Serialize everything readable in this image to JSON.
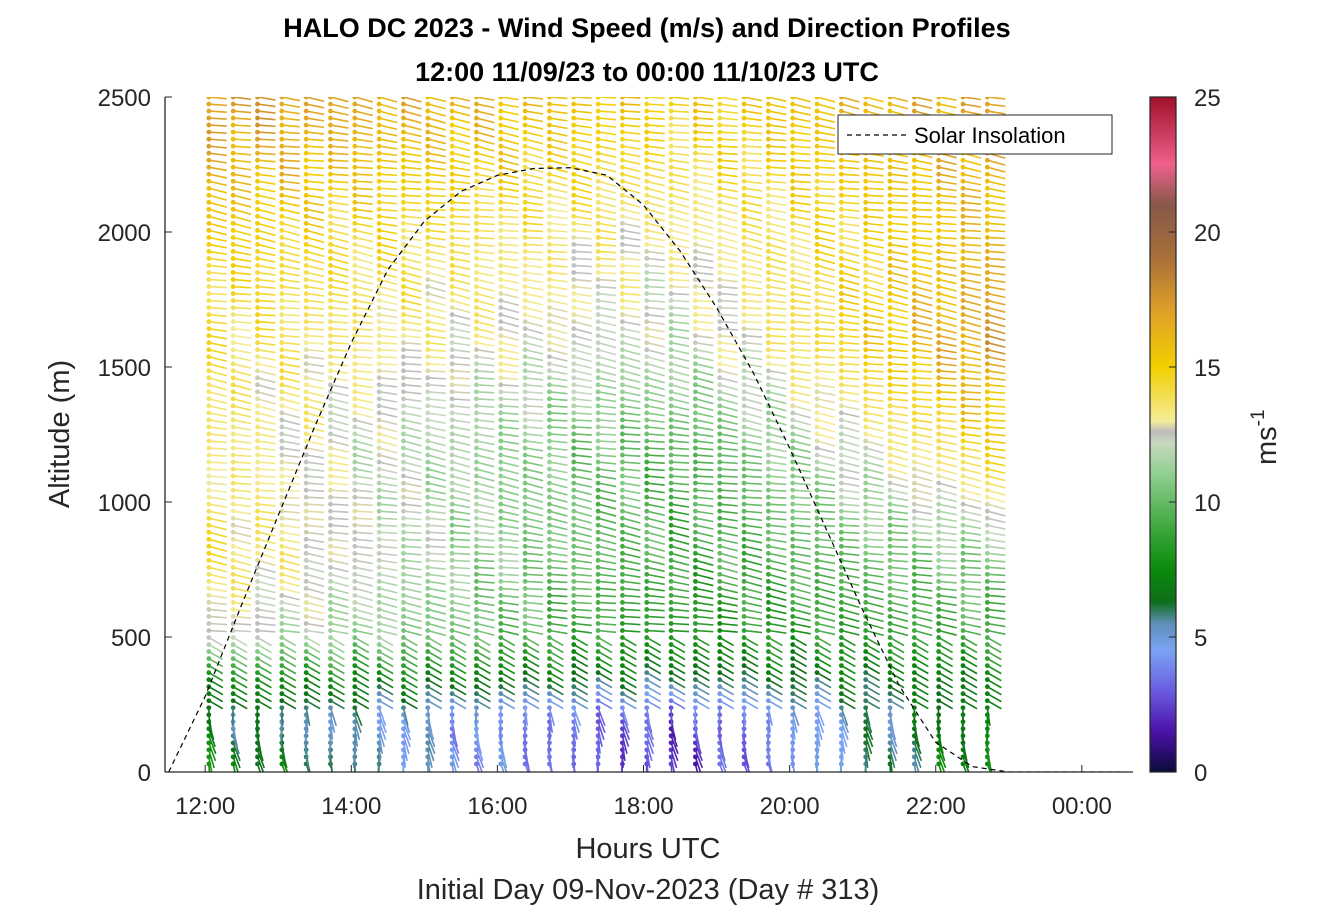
{
  "chart_data": {
    "type": "barb-profile",
    "title_line1": "HALO DC 2023 - Wind Speed (m/s) and Direction Profiles",
    "title_line2": "12:00 11/09/23 to 00:00 11/10/23  UTC",
    "xlabel": "Hours UTC",
    "xlabel2": "Initial Day 09-Nov-2023 (Day # 313)",
    "ylabel": "Altitude (m)",
    "x_ticks": [
      {
        "hour": 12,
        "label": "12:00"
      },
      {
        "hour": 14,
        "label": "14:00"
      },
      {
        "hour": 16,
        "label": "16:00"
      },
      {
        "hour": 18,
        "label": "18:00"
      },
      {
        "hour": 20,
        "label": "20:00"
      },
      {
        "hour": 22,
        "label": "22:00"
      },
      {
        "hour": 24,
        "label": "00:00"
      }
    ],
    "y_ticks": [
      {
        "value": 0,
        "label": "0"
      },
      {
        "value": 500,
        "label": "500"
      },
      {
        "value": 1000,
        "label": "1000"
      },
      {
        "value": 1500,
        "label": "1500"
      },
      {
        "value": 2000,
        "label": "2000"
      },
      {
        "value": 2500,
        "label": "2500"
      }
    ],
    "xlim_hours": [
      11.45,
      24.7
    ],
    "ylim_m": [
      0,
      2500
    ],
    "profile_time_range_hours": [
      12.05,
      22.85
    ],
    "profile_interval_hours": 0.333,
    "altitude_range_m": [
      30,
      2500
    ],
    "altitude_spacing_m": 26,
    "colorbar": {
      "label": "ms",
      "label_exponent": "-1",
      "range": [
        0,
        25
      ],
      "ticks": [
        {
          "value": 0,
          "label": "0"
        },
        {
          "value": 5,
          "label": "5"
        },
        {
          "value": 10,
          "label": "10"
        },
        {
          "value": 15,
          "label": "15"
        },
        {
          "value": 20,
          "label": "20"
        },
        {
          "value": 25,
          "label": "25"
        }
      ],
      "stops": [
        {
          "v": 0,
          "color": "#0b0b3a"
        },
        {
          "v": 1.5,
          "color": "#4b12a8"
        },
        {
          "v": 3,
          "color": "#6a5be0"
        },
        {
          "v": 4.5,
          "color": "#7ba3f5"
        },
        {
          "v": 5.5,
          "color": "#5f8fb8"
        },
        {
          "v": 6.3,
          "color": "#0e6e1a"
        },
        {
          "v": 7.5,
          "color": "#0a8a0a"
        },
        {
          "v": 9,
          "color": "#3da63d"
        },
        {
          "v": 11,
          "color": "#8fcf8f"
        },
        {
          "v": 12.2,
          "color": "#c8d8c0"
        },
        {
          "v": 12.6,
          "color": "#bdbdbd"
        },
        {
          "v": 13,
          "color": "#f4ec98"
        },
        {
          "v": 15,
          "color": "#f2cf00"
        },
        {
          "v": 17,
          "color": "#e1a228"
        },
        {
          "v": 19,
          "color": "#a97038"
        },
        {
          "v": 21,
          "color": "#87584a"
        },
        {
          "v": 22.5,
          "color": "#f0608c"
        },
        {
          "v": 25,
          "color": "#a0102a"
        }
      ]
    },
    "legend": {
      "entries": [
        {
          "label": "Solar Insolation",
          "style": "dashed",
          "color": "#000000"
        }
      ],
      "location": "top-right"
    },
    "solar_insolation_curve": {
      "x_hours": [
        11.5,
        12.0,
        12.5,
        13.0,
        13.5,
        14.0,
        14.5,
        15.0,
        15.5,
        16.0,
        16.5,
        17.0,
        17.5,
        18.0,
        18.5,
        19.0,
        19.5,
        20.0,
        20.5,
        21.0,
        21.5,
        22.0,
        22.5,
        23.0,
        24.6
      ],
      "y_m": [
        0,
        280,
        620,
        950,
        1280,
        1590,
        1860,
        2040,
        2150,
        2210,
        2235,
        2238,
        2210,
        2100,
        1930,
        1720,
        1480,
        1200,
        900,
        600,
        320,
        110,
        20,
        0,
        0
      ]
    },
    "wind_profile_model": {
      "speed_layers_ms": [
        {
          "alt_m": 50,
          "early": 7.5,
          "mid": 2.0,
          "late": 8.0
        },
        {
          "alt_m": 200,
          "early": 6.0,
          "mid": 2.5,
          "late": 7.5
        },
        {
          "alt_m": 350,
          "early": 8.0,
          "mid": 6.0,
          "late": 7.0
        },
        {
          "alt_m": 500,
          "early": 12.5,
          "mid": 8.0,
          "late": 9.0
        },
        {
          "alt_m": 800,
          "early": 14.0,
          "mid": 9.0,
          "late": 11.0
        },
        {
          "alt_m": 1200,
          "early": 13.5,
          "mid": 9.5,
          "late": 15.0
        },
        {
          "alt_m": 1600,
          "early": 14.0,
          "mid": 12.0,
          "late": 17.5
        },
        {
          "alt_m": 2000,
          "early": 15.0,
          "mid": 13.0,
          "late": 16.0
        },
        {
          "alt_m": 2500,
          "early": 17.5,
          "mid": 15.0,
          "late": 17.0
        }
      ],
      "direction_note": "westerly flow aloft, veering to north/northwesterly near the surface"
    }
  }
}
